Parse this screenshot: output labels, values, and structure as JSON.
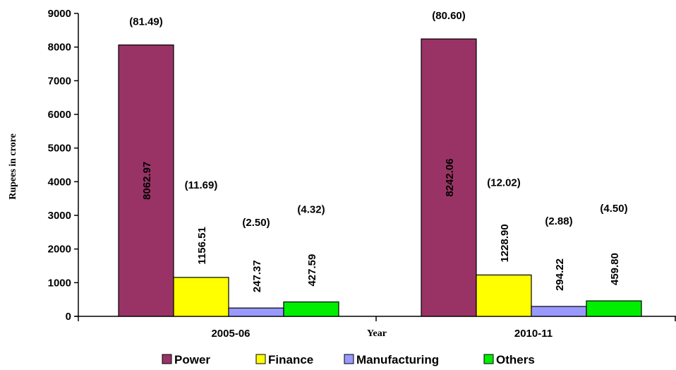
{
  "chart_data": {
    "type": "bar",
    "categories": [
      "2005-06",
      "2010-11"
    ],
    "xlabel": "Year",
    "ylabel": "Rupees in crore",
    "ylim": [
      0,
      9000
    ],
    "yticks": [
      0,
      1000,
      2000,
      3000,
      4000,
      5000,
      6000,
      7000,
      8000,
      9000
    ],
    "series": [
      {
        "name": "Power",
        "color": "#993366",
        "values": [
          8062.97,
          8242.06
        ],
        "labels": [
          "8062.97",
          "8242.06"
        ],
        "shares": [
          "(81.49)",
          "(80.60)"
        ]
      },
      {
        "name": "Finance",
        "color": "#ffff00",
        "values": [
          1156.51,
          1228.9
        ],
        "labels": [
          "1156.51",
          "1228.90"
        ],
        "shares": [
          "(11.69)",
          "(12.02)"
        ]
      },
      {
        "name": "Manufacturing",
        "color": "#9999ff",
        "values": [
          247.37,
          294.22
        ],
        "labels": [
          "247.37",
          "294.22"
        ],
        "shares": [
          "(2.50)",
          "(2.88)"
        ]
      },
      {
        "name": "Others",
        "color": "#00ee00",
        "values": [
          427.59,
          459.8
        ],
        "labels": [
          "427.59",
          "459.80"
        ],
        "shares": [
          "(4.32)",
          "(4.50)"
        ]
      }
    ],
    "legend": "bottom"
  }
}
